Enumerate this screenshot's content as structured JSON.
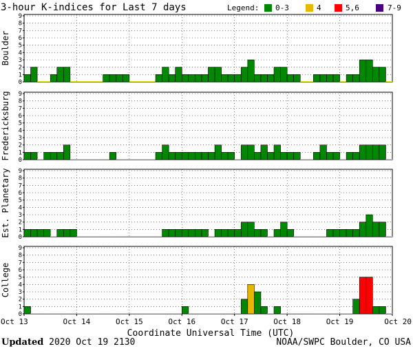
{
  "chart_data": {
    "type": "bar",
    "title": "3-hour K-indices for Last 7 days",
    "legend": {
      "label": "Legend:",
      "placement": "top-right",
      "entries": [
        {
          "name": "0-3",
          "color": "#008800"
        },
        {
          "name": "4",
          "color": "#e8b800"
        },
        {
          "name": "5,6",
          "color": "#ff0000"
        },
        {
          "name": "7-9",
          "color": "#4b0082"
        }
      ]
    },
    "xlabel": "Coordinate Universal Time (UTC)",
    "x_ticks": [
      "Oct 13",
      "Oct 14",
      "Oct 15",
      "Oct 16",
      "Oct 17",
      "Oct 18",
      "Oct 19",
      "Oct 20"
    ],
    "ylim": [
      0,
      9
    ],
    "y_ticks": [
      "0",
      "1",
      "2",
      "3",
      "4",
      "5",
      "6",
      "7",
      "8",
      "9"
    ],
    "interval_hours": 3,
    "grid": true,
    "series": [
      {
        "name": "Boulder",
        "values": [
          1,
          2,
          0,
          0,
          1,
          2,
          2,
          0,
          0,
          0,
          0,
          0,
          1,
          1,
          1,
          1,
          0,
          0,
          0,
          0,
          1,
          2,
          1,
          2,
          1,
          1,
          1,
          1,
          2,
          2,
          1,
          1,
          1,
          2,
          3,
          1,
          1,
          1,
          2,
          2,
          1,
          1,
          0,
          0,
          1,
          1,
          1,
          1,
          0,
          1,
          1,
          3,
          3,
          2,
          2,
          0
        ]
      },
      {
        "name": "Fredericksburg",
        "values": [
          1,
          1,
          0,
          1,
          1,
          1,
          2,
          0,
          0,
          0,
          0,
          0,
          0,
          1,
          0,
          0,
          0,
          0,
          0,
          0,
          1,
          2,
          1,
          1,
          1,
          1,
          1,
          1,
          1,
          2,
          1,
          1,
          0,
          2,
          2,
          1,
          2,
          1,
          2,
          1,
          1,
          1,
          0,
          0,
          1,
          2,
          1,
          1,
          0,
          1,
          1,
          2,
          2,
          2,
          2,
          0
        ]
      },
      {
        "name": "Est. Planetary",
        "values": [
          1,
          1,
          1,
          1,
          0,
          1,
          1,
          1,
          0,
          0,
          0,
          0,
          0,
          0,
          0,
          0,
          0,
          0,
          0,
          0,
          0,
          1,
          1,
          1,
          1,
          1,
          1,
          1,
          0,
          1,
          1,
          1,
          1,
          2,
          2,
          1,
          1,
          0,
          1,
          2,
          1,
          0,
          0,
          0,
          0,
          0,
          1,
          1,
          1,
          1,
          1,
          2,
          3,
          2,
          2,
          0
        ]
      },
      {
        "name": "College",
        "values": [
          1,
          0,
          0,
          0,
          0,
          0,
          0,
          0,
          0,
          0,
          0,
          0,
          0,
          0,
          0,
          0,
          0,
          0,
          0,
          0,
          0,
          0,
          0,
          0,
          1,
          0,
          0,
          0,
          0,
          0,
          0,
          0,
          0,
          2,
          4,
          3,
          1,
          0,
          1,
          0,
          0,
          0,
          0,
          0,
          0,
          0,
          0,
          0,
          0,
          0,
          2,
          5,
          5,
          1,
          1,
          0
        ]
      }
    ]
  },
  "footer": {
    "updated_label": "Updated",
    "updated_time": "2020 Oct 19 2130",
    "source": "NOAA/SWPC Boulder, CO USA"
  }
}
